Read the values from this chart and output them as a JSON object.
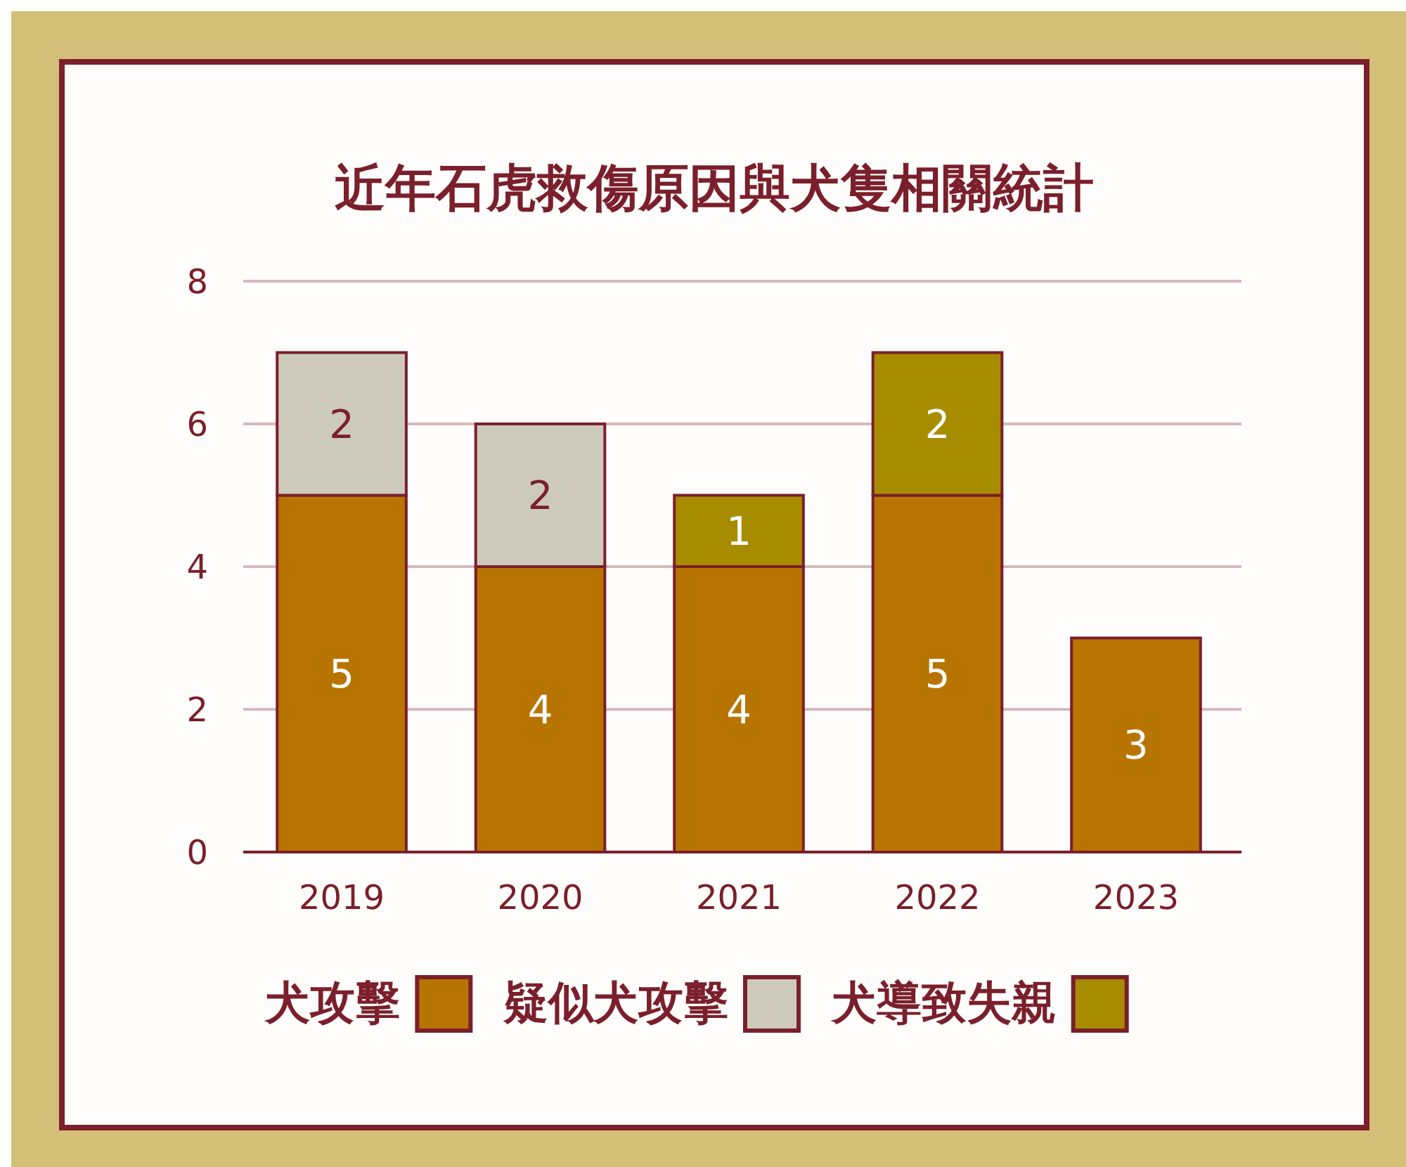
{
  "chart_data": {
    "type": "bar",
    "title": "近年石虎救傷原因與犬隻相關統計",
    "categories": [
      "2019",
      "2020",
      "2021",
      "2022",
      "2023"
    ],
    "stacked": true,
    "series": [
      {
        "name": "犬攻擊",
        "color": "#b87400",
        "values": [
          5,
          4,
          4,
          5,
          3
        ]
      },
      {
        "name": "疑似犬攻擊",
        "color": "#cdcabc",
        "values": [
          2,
          2,
          null,
          null,
          null
        ]
      },
      {
        "name": "犬導致失親",
        "color": "#a88c00",
        "values": [
          null,
          null,
          1,
          2,
          null
        ]
      }
    ],
    "ylim": [
      0,
      8
    ],
    "yticks": [
      0,
      2,
      4,
      6,
      8
    ],
    "grid": "y",
    "legend": "bottom",
    "data_labels": true
  }
}
